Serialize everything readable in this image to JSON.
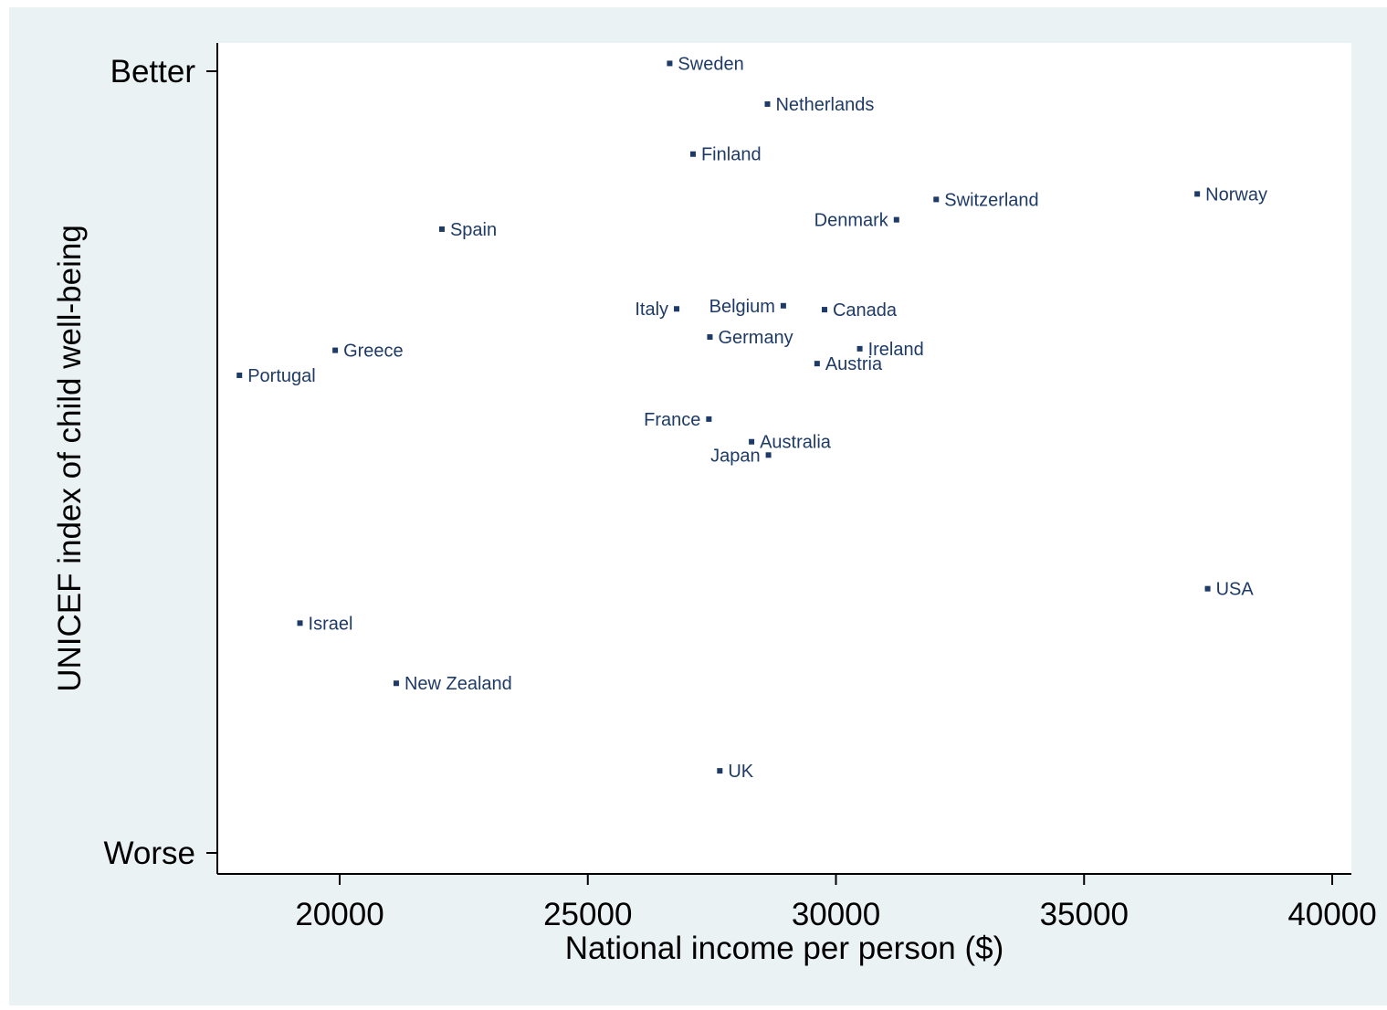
{
  "chart_data": {
    "type": "scatter",
    "xlabel": "National income per person ($)",
    "ylabel": "UNICEF index of child well-being",
    "x_ticks": [
      20000,
      25000,
      30000,
      35000,
      40000
    ],
    "x_tick_labels": [
      "20000",
      "25000",
      "30000",
      "35000",
      "40000"
    ],
    "xlim": [
      17500,
      40400
    ],
    "ylim": [
      0,
      100
    ],
    "y_ticks": [
      {
        "value": 100,
        "label": "Better"
      },
      {
        "value": 0,
        "label": "Worse"
      }
    ],
    "grid": false,
    "legend": "none",
    "colors": {
      "background": "#eaf2f3",
      "plot_area": "#ffffff",
      "marker": "#1e3a66",
      "label": "#1e3a66",
      "axis": "#000000"
    },
    "points": [
      {
        "label": "Sweden",
        "x": 26650,
        "y": 101.0,
        "side": "right"
      },
      {
        "label": "Netherlands",
        "x": 28620,
        "y": 95.8,
        "side": "right"
      },
      {
        "label": "Finland",
        "x": 27120,
        "y": 89.4,
        "side": "right"
      },
      {
        "label": "Switzerland",
        "x": 32020,
        "y": 83.6,
        "side": "right"
      },
      {
        "label": "Norway",
        "x": 37280,
        "y": 84.3,
        "side": "right"
      },
      {
        "label": "Denmark",
        "x": 31220,
        "y": 81.0,
        "side": "left"
      },
      {
        "label": "Spain",
        "x": 22060,
        "y": 79.8,
        "side": "right"
      },
      {
        "label": "Italy",
        "x": 26790,
        "y": 69.6,
        "side": "left"
      },
      {
        "label": "Belgium",
        "x": 28940,
        "y": 70.0,
        "side": "left"
      },
      {
        "label": "Canada",
        "x": 29770,
        "y": 69.5,
        "side": "right"
      },
      {
        "label": "Germany",
        "x": 27460,
        "y": 66.0,
        "side": "right"
      },
      {
        "label": "Greece",
        "x": 19910,
        "y": 64.3,
        "side": "right"
      },
      {
        "label": "Ireland",
        "x": 30480,
        "y": 64.5,
        "side": "right"
      },
      {
        "label": "Austria",
        "x": 29620,
        "y": 62.6,
        "side": "right"
      },
      {
        "label": "Portugal",
        "x": 17980,
        "y": 61.1,
        "side": "right"
      },
      {
        "label": "France",
        "x": 27440,
        "y": 55.5,
        "side": "left"
      },
      {
        "label": "Australia",
        "x": 28300,
        "y": 52.6,
        "side": "right"
      },
      {
        "label": "Japan",
        "x": 28640,
        "y": 50.9,
        "side": "left"
      },
      {
        "label": "USA",
        "x": 37490,
        "y": 33.8,
        "side": "right"
      },
      {
        "label": "Israel",
        "x": 19200,
        "y": 29.4,
        "side": "right"
      },
      {
        "label": "New Zealand",
        "x": 21140,
        "y": 21.7,
        "side": "right"
      },
      {
        "label": "UK",
        "x": 27660,
        "y": 10.5,
        "side": "right"
      }
    ]
  }
}
